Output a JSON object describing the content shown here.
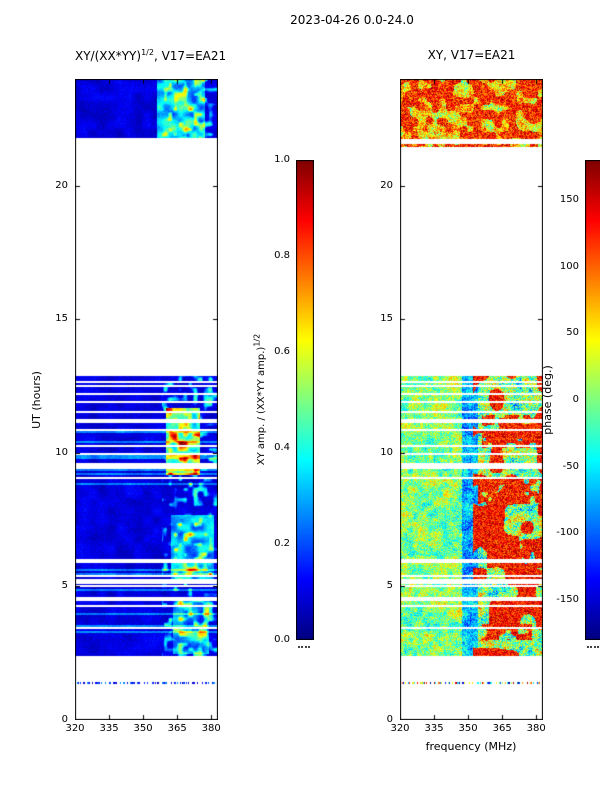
{
  "figure": {
    "title": "2023-04-26 0.0-24.0",
    "bg": "#ffffff",
    "fg": "#000000"
  },
  "left_panel": {
    "title_pre": "XY/(XX*YY)",
    "title_sup": "1/2",
    "title_post": ", V17=EA21",
    "ylabel": "UT (hours)",
    "xticks": [
      "320",
      "335",
      "350",
      "365",
      "380"
    ],
    "yticks": [
      "0",
      "5",
      "10",
      "15",
      "20"
    ]
  },
  "right_panel": {
    "title": "XY, V17=EA21",
    "xlabel": "frequency (MHz)",
    "xticks": [
      "320",
      "335",
      "350",
      "365",
      "380"
    ],
    "yticks": [
      "0",
      "5",
      "10",
      "15",
      "20"
    ]
  },
  "amp_colorbar": {
    "ticks": [
      "1.0",
      "0.8",
      "0.6",
      "0.4",
      "0.2",
      "0.0"
    ],
    "label_pre": "XY amp. / (XX*YY amp.)",
    "label_sup": "1/2"
  },
  "phase_colorbar": {
    "ticks": [
      "150",
      "100",
      "50",
      "0",
      "-50",
      "-100",
      "-150"
    ],
    "label": "phase (deg.)"
  },
  "chart_data": {
    "type": "heatmap",
    "title": "2023-04-26 0.0-24.0",
    "colormap": "jet",
    "x_range_mhz": [
      320,
      383
    ],
    "y_range_hours": [
      0,
      24
    ],
    "panels": [
      {
        "name": "xy_over_sqrt_xxyy_amplitude",
        "title": "XY/(XX*YY)^(1/2), V17=EA21",
        "value_range": [
          0.0,
          1.0
        ],
        "data_bands_ut_hours": [
          [
            21.8,
            24.0
          ],
          [
            2.4,
            12.9
          ],
          [
            1.35,
            1.45
          ]
        ],
        "gap_fractions": [
          0.16,
          0.16,
          0
        ],
        "no_data": "white",
        "summary": "Amplitude mostly 0.00-0.15 (dark blue) across 320-383 MHz; enhanced 0.3-0.7 (green/yellow) near 360-375 MHz between 9.2-11.7 h; cyan features 356-381 MHz in 5.2-7.7 h and above 21.8 h; frequent thin white time gaps; 13-21.8 h and 0-2.4 h have no data except one sparse integration near 1.4 h"
      },
      {
        "name": "xy_phase",
        "title": "XY, V17=EA21",
        "value_range": [
          -180,
          180
        ],
        "data_bands_ut_hours": [
          [
            21.4,
            24.0
          ],
          [
            2.4,
            12.9
          ],
          [
            1.35,
            1.45
          ]
        ],
        "gap_fractions": [
          0.1,
          0.16,
          0
        ],
        "no_data": "white",
        "summary": "Phase noise over +/-180 deg: cyan/green speckle 320-347 MHz, dark-blue streaks 347-354 MHz, strong +100..+180 deg red/orange patches 354-383 MHz near 3.0-3.6, 5.7-6.8, 8.1-9.1 and 10.2-11.45 h; band above 21.4 h dominated by red/orange with blue patches"
      }
    ],
    "colorbars": [
      {
        "label": "XY amp. / (XX*YY amp.)^(1/2)",
        "range": [
          0.0,
          1.0
        ],
        "ticks": [
          0.0,
          0.2,
          0.4,
          0.6,
          0.8,
          1.0
        ]
      },
      {
        "label": "phase (deg.)",
        "range": [
          -180,
          180
        ],
        "ticks": [
          -150,
          -100,
          -50,
          0,
          50,
          100,
          150
        ]
      }
    ],
    "render": {
      "seed": 5,
      "amp_hot_zones": [
        [
          9.2,
          11.7,
          360,
          375,
          0.22,
          0.35
        ],
        [
          5.2,
          7.7,
          362,
          381,
          0.08,
          0.25
        ],
        [
          21.8,
          24,
          356,
          377,
          0.1,
          0.28
        ],
        [
          2.5,
          4.5,
          363,
          379,
          0.05,
          0.2
        ]
      ],
      "phase_red_zones": [
        [
          8.1,
          9.1,
          354,
          383
        ],
        [
          10.2,
          11.45,
          356,
          383
        ],
        [
          5.7,
          6.8,
          358,
          383
        ],
        [
          3.0,
          3.6,
          356,
          378
        ]
      ]
    }
  }
}
